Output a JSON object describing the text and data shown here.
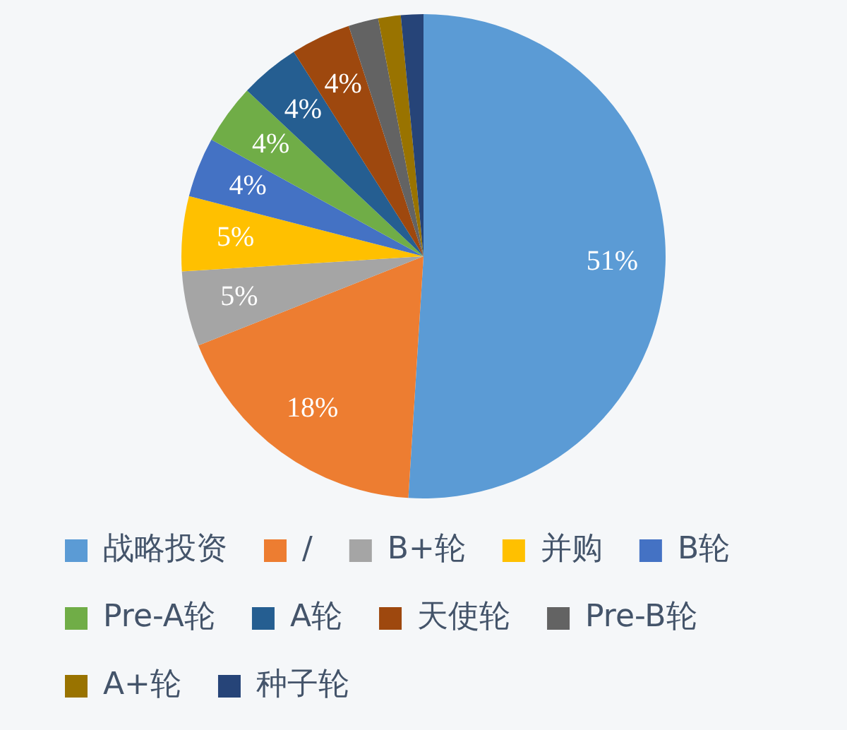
{
  "chart_data": {
    "type": "pie",
    "categories": [
      "战略投资",
      "/",
      "B+轮",
      "并购",
      "B轮",
      "Pre-A轮",
      "A轮",
      "天使轮",
      "Pre-B轮",
      "A+轮",
      "种子轮"
    ],
    "values": [
      51,
      18,
      5,
      5,
      4,
      4,
      4,
      4,
      2,
      1.5,
      1.5
    ],
    "colors": [
      "#5b9bd5",
      "#ed7d31",
      "#a5a5a5",
      "#ffc000",
      "#4472c4",
      "#70ad47",
      "#255e91",
      "#9e480e",
      "#636363",
      "#997300",
      "#264478"
    ],
    "value_labels": [
      "51%",
      "18%",
      "5%",
      "5%",
      "4%",
      "4%",
      "4%",
      "4%",
      null,
      null,
      null
    ],
    "legend": "bottom"
  }
}
